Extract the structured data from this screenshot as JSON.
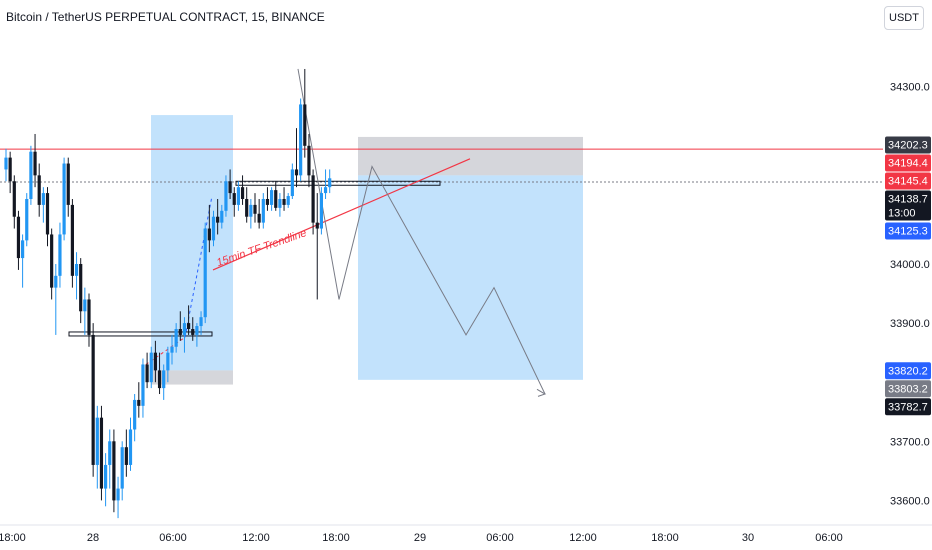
{
  "header": {
    "title": "Bitcoin / TetherUS PERPETUAL CONTRACT, 15, BINANCE",
    "currency_label": "USDT"
  },
  "chart_data": {
    "type": "candlestick",
    "title": "Bitcoin / TetherUS PERPETUAL CONTRACT, 15, BINANCE",
    "ylim": [
      33570,
      34405
    ],
    "grid": false,
    "y_ticks": [
      {
        "label": "34300.0",
        "value": 34300
      },
      {
        "label": "34000.0",
        "value": 34000
      },
      {
        "label": "33900.0",
        "value": 33900
      },
      {
        "label": "33700.0",
        "value": 33700
      },
      {
        "label": "33600.0",
        "value": 33600
      }
    ],
    "x_ticks": [
      "18:00",
      "28",
      "06:00",
      "12:00",
      "18:00",
      "29",
      "06:00",
      "12:00",
      "18:00",
      "30",
      "06:00"
    ],
    "price_tags": [
      {
        "label": "34202.3",
        "value": 34202.3,
        "color": "#363a45"
      },
      {
        "label": "34194.4",
        "value": 34194.4,
        "color": "#f23645"
      },
      {
        "label": "34145.4",
        "value": 34145.4,
        "color": "#f23645"
      },
      {
        "label": "34138.7",
        "value": 34138.7,
        "color": "#131722",
        "sub": "13:00"
      },
      {
        "label": "34125.3",
        "value": 34125.3,
        "color": "#2962ff"
      },
      {
        "label": "33820.2",
        "value": 33820.2,
        "color": "#2962ff"
      },
      {
        "label": "33803.2",
        "value": 33803.2,
        "color": "#787b86"
      },
      {
        "label": "33782.7",
        "value": 33782.7,
        "color": "#131722"
      }
    ],
    "annotations": [
      {
        "text": "15min TF Trendline",
        "color": "#f23645"
      }
    ],
    "horizontal_lines": [
      {
        "value": 34194.4,
        "color": "#f23645"
      },
      {
        "value": 34138.7,
        "color": "#787b86"
      }
    ],
    "candles": [
      [
        34160,
        34195,
        34140,
        34180
      ],
      [
        34180,
        34190,
        34120,
        34140
      ],
      [
        34140,
        34150,
        34060,
        34080
      ],
      [
        34080,
        34090,
        33990,
        34010
      ],
      [
        34010,
        34050,
        33960,
        34040
      ],
      [
        34040,
        34120,
        34030,
        34110
      ],
      [
        34110,
        34200,
        34100,
        34190
      ],
      [
        34190,
        34220,
        34130,
        34150
      ],
      [
        34150,
        34170,
        34080,
        34100
      ],
      [
        34100,
        34130,
        34070,
        34120
      ],
      [
        34120,
        34130,
        34030,
        34050
      ],
      [
        34050,
        34060,
        33940,
        33960
      ],
      [
        33960,
        34000,
        33880,
        33980
      ],
      [
        33980,
        34070,
        33960,
        34050
      ],
      [
        34050,
        34180,
        34040,
        34170
      ],
      [
        34170,
        34180,
        34080,
        34100
      ],
      [
        34100,
        34110,
        33960,
        33980
      ],
      [
        33980,
        34020,
        33940,
        34000
      ],
      [
        34000,
        34010,
        33900,
        33920
      ],
      [
        33920,
        33960,
        33880,
        33940
      ],
      [
        33940,
        33950,
        33860,
        33880
      ],
      [
        33880,
        33900,
        33640,
        33660
      ],
      [
        33660,
        33760,
        33620,
        33740
      ],
      [
        33740,
        33760,
        33600,
        33620
      ],
      [
        33620,
        33680,
        33590,
        33660
      ],
      [
        33660,
        33720,
        33620,
        33700
      ],
      [
        33700,
        33720,
        33580,
        33600
      ],
      [
        33600,
        33640,
        33570,
        33620
      ],
      [
        33620,
        33700,
        33600,
        33690
      ],
      [
        33690,
        33720,
        33640,
        33660
      ],
      [
        33660,
        33740,
        33650,
        33720
      ],
      [
        33720,
        33780,
        33700,
        33770
      ],
      [
        33770,
        33800,
        33740,
        33760
      ],
      [
        33760,
        33840,
        33740,
        33830
      ],
      [
        33830,
        33850,
        33790,
        33800
      ],
      [
        33800,
        33860,
        33790,
        33850
      ],
      [
        33850,
        33870,
        33800,
        33820
      ],
      [
        33820,
        33850,
        33780,
        33790
      ],
      [
        33790,
        33830,
        33770,
        33820
      ],
      [
        33820,
        33860,
        33800,
        33850
      ],
      [
        33850,
        33880,
        33830,
        33860
      ],
      [
        33860,
        33900,
        33850,
        33890
      ],
      [
        33890,
        33920,
        33870,
        33880
      ],
      [
        33880,
        33910,
        33850,
        33900
      ],
      [
        33900,
        33930,
        33880,
        33890
      ],
      [
        33890,
        33910,
        33870,
        33880
      ],
      [
        33880,
        33900,
        33860,
        33895
      ],
      [
        33895,
        33920,
        33880,
        33910
      ],
      [
        33910,
        34070,
        33900,
        34060
      ],
      [
        34060,
        34100,
        34020,
        34040
      ],
      [
        34040,
        34090,
        34030,
        34080
      ],
      [
        34080,
        34110,
        34050,
        34070
      ],
      [
        34070,
        34100,
        34060,
        34090
      ],
      [
        34090,
        34150,
        34080,
        34140
      ],
      [
        34140,
        34160,
        34110,
        34120
      ],
      [
        34120,
        34130,
        34080,
        34100
      ],
      [
        34100,
        34140,
        34090,
        34130
      ],
      [
        34130,
        34150,
        34100,
        34110
      ],
      [
        34110,
        34130,
        34070,
        34080
      ],
      [
        34080,
        34110,
        34060,
        34100
      ],
      [
        34100,
        34120,
        34070,
        34085
      ],
      [
        34085,
        34110,
        34060,
        34070
      ],
      [
        34070,
        34120,
        34060,
        34110
      ],
      [
        34110,
        34130,
        34090,
        34100
      ],
      [
        34100,
        34130,
        34090,
        34125
      ],
      [
        34125,
        34140,
        34090,
        34095
      ],
      [
        34095,
        34120,
        34080,
        34110
      ],
      [
        34110,
        34130,
        34090,
        34100
      ],
      [
        34100,
        34120,
        34095,
        34115
      ],
      [
        34115,
        34170,
        34110,
        34160
      ],
      [
        34160,
        34230,
        34130,
        34150
      ],
      [
        34150,
        34280,
        34140,
        34270
      ],
      [
        34270,
        34330,
        34180,
        34200
      ],
      [
        34200,
        34220,
        34130,
        34150
      ],
      [
        34150,
        34160,
        34050,
        34070
      ],
      [
        34070,
        34120,
        33940,
        34060
      ],
      [
        34060,
        34130,
        34050,
        34120
      ],
      [
        34120,
        34160,
        34110,
        34130
      ],
      [
        34130,
        34160,
        34120,
        34145
      ]
    ],
    "trade_zones": [
      {
        "type": "long-target",
        "color": "#90caf9"
      },
      {
        "type": "long-stop",
        "color": "#b2b5be"
      },
      {
        "type": "short-stop",
        "color": "#b2b5be"
      },
      {
        "type": "short-target",
        "color": "#90caf9"
      }
    ],
    "colors": {
      "up": "#2196f3",
      "down": "#131722"
    }
  }
}
